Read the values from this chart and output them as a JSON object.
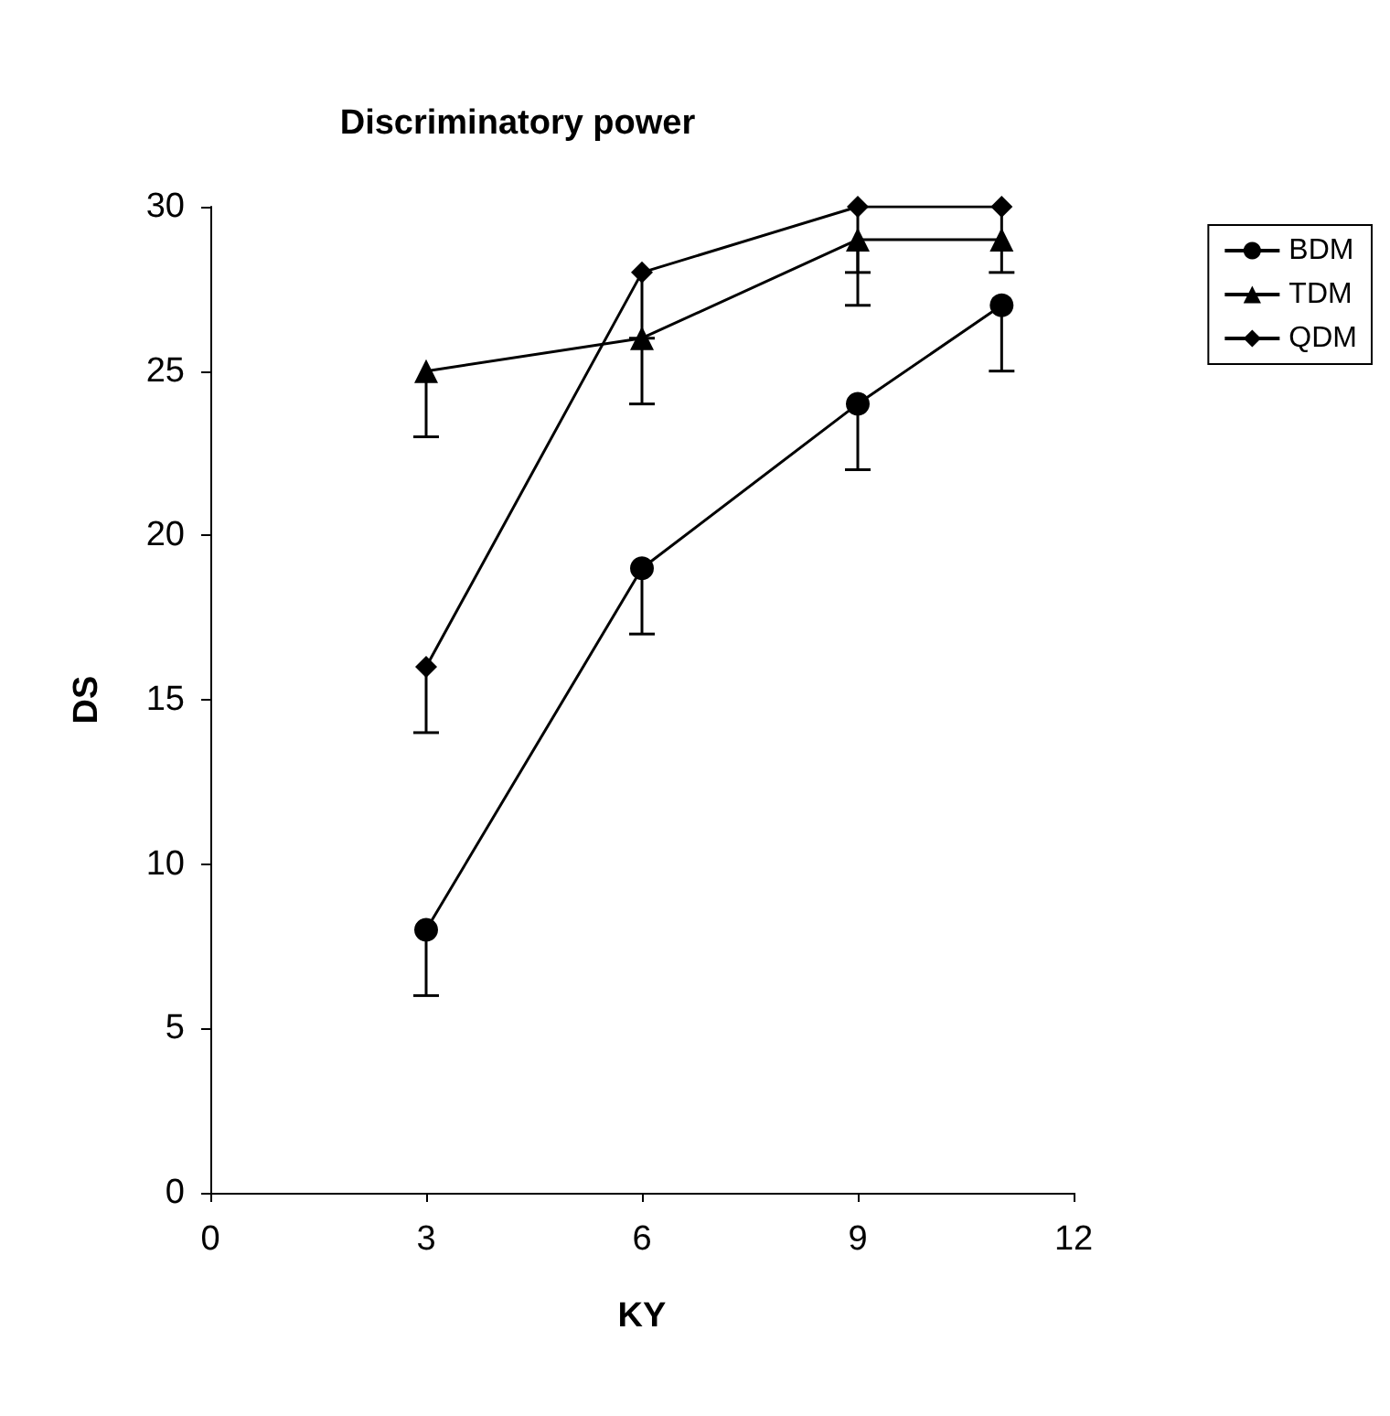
{
  "chart_data": {
    "type": "line",
    "title": "Discriminatory power",
    "xlabel": "KY",
    "ylabel": "DS",
    "x": [
      3,
      6,
      9,
      11
    ],
    "xlim": [
      0,
      12
    ],
    "xticks": [
      0,
      3,
      6,
      9,
      12
    ],
    "ylim": [
      0,
      30
    ],
    "yticks": [
      0,
      5,
      10,
      15,
      20,
      25,
      30
    ],
    "grid": false,
    "legend": "top right",
    "series": [
      {
        "name": "BDM",
        "color": "#000000",
        "marker": "circle",
        "values": [
          8,
          19,
          24,
          27
        ],
        "errors": [
          [
            6,
            8
          ],
          [
            17,
            19
          ],
          [
            22,
            24
          ],
          [
            25,
            27
          ]
        ]
      },
      {
        "name": "TDM",
        "color": "#000000",
        "marker": "triangle",
        "values": [
          25,
          26,
          29,
          29
        ],
        "errors": [
          [
            23,
            25
          ],
          [
            24,
            26
          ],
          [
            27,
            29
          ],
          null
        ]
      },
      {
        "name": "QDM",
        "color": "#000000",
        "marker": "diamond",
        "values": [
          16,
          28,
          30,
          30
        ],
        "errors": [
          [
            14,
            16
          ],
          [
            26,
            28
          ],
          [
            28,
            30
          ],
          [
            28,
            30
          ]
        ]
      }
    ]
  }
}
